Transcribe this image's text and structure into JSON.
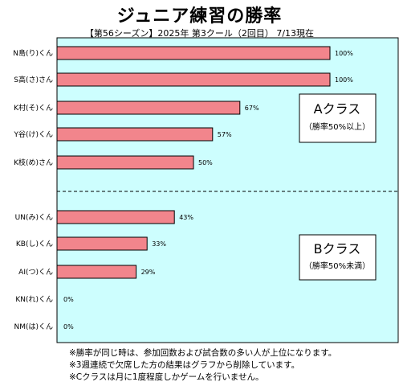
{
  "title": "ジュニア練習の勝率",
  "subtitle": "【第56シーズン】2025年 第3クール（2回目） 7/13現在",
  "chart_data": {
    "type": "bar",
    "orientation": "horizontal",
    "categories": [
      "N島(り)くん",
      "S高(さ)さん",
      "K村(そ)くん",
      "Y谷(け)くん",
      "K枝(め)さん",
      "UN(み)くん",
      "KB(し)くん",
      "AI(つ)くん",
      "KN(れ)くん",
      "NM(は)くん"
    ],
    "values": [
      100,
      100,
      67,
      57,
      50,
      43,
      33,
      29,
      0,
      0
    ],
    "value_labels": [
      "100%",
      "100%",
      "67%",
      "57%",
      "50%",
      "43%",
      "33%",
      "29%",
      "0%",
      "0%"
    ],
    "xlim": [
      0,
      100
    ],
    "grid": false,
    "colors": {
      "plot_bg": "#cdfefe",
      "bar": "#f2858c",
      "bar_border": "#000000",
      "divider": "#000000"
    },
    "groups": [
      {
        "title": "Aクラス",
        "subtitle": "（勝率50%以上）"
      },
      {
        "title": "Bクラス",
        "subtitle": "（勝率50%未満）"
      }
    ]
  },
  "notes": [
    "※勝率が同じ時は、参加回数および試合数の多い人が上位になります。",
    "※3週連続で欠席した方の結果はグラフから削除しています。",
    "※Cクラスは月に1度程度しかゲームを行いません。"
  ]
}
